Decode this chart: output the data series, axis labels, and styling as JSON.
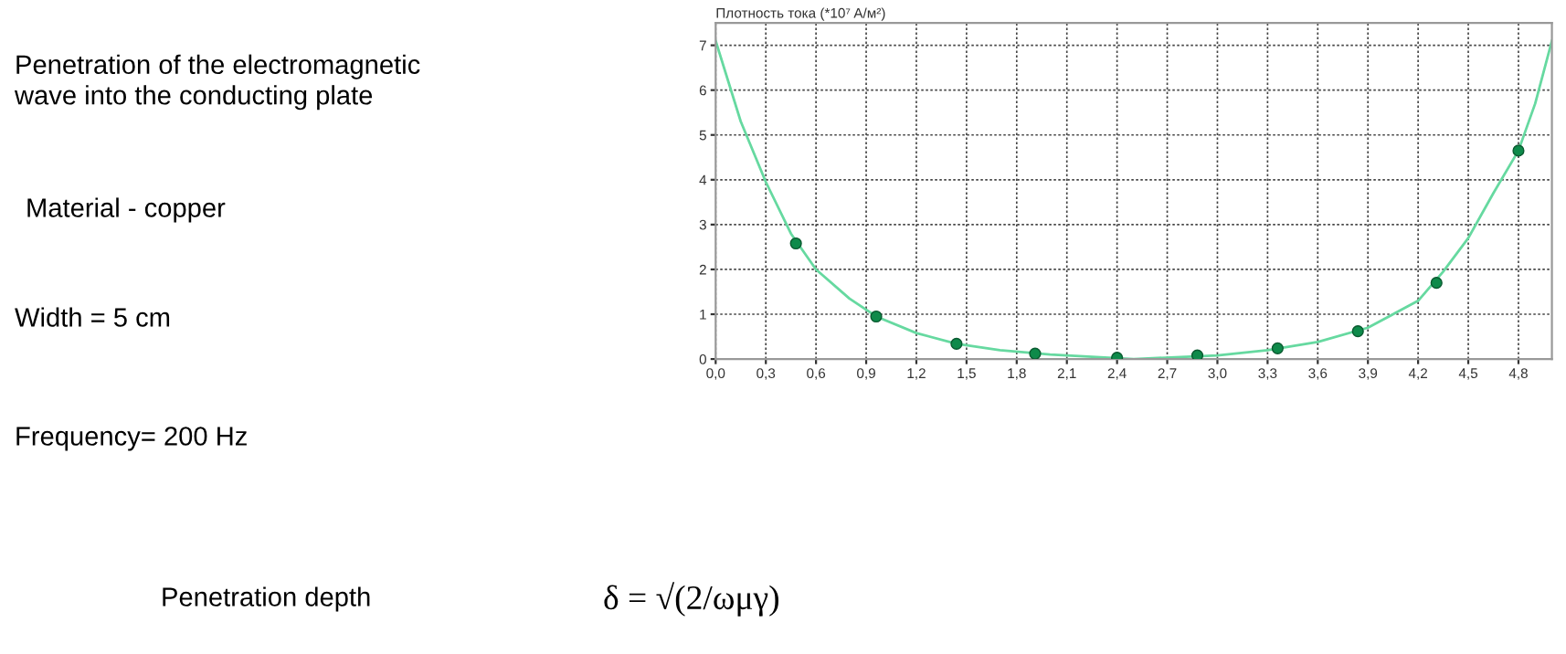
{
  "chart_data": {
    "type": "line",
    "title": "Плотность тока (*10⁷ A/м²)",
    "annotations": [
      "Penetration of the electromagnetic\nwave into the conducting plate",
      "Material - copper",
      "Width = 5 cm",
      "Frequency= 200 Hz",
      "Penetration depth",
      "δ = √(2/ωμγ)"
    ],
    "series": [
      {
        "color": "#66d9a0",
        "marker": "none",
        "x": [
          0,
          0.15,
          0.3,
          0.45,
          0.6,
          0.8,
          0.96,
          1.2,
          1.44,
          1.7,
          2.0,
          2.25,
          2.5,
          2.75,
          3.0,
          3.3,
          3.6,
          3.9,
          4.2,
          4.35,
          4.5,
          4.65,
          4.8,
          4.9,
          5.0
        ],
        "values": [
          7.1,
          5.3,
          3.95,
          2.8,
          2.0,
          1.35,
          0.95,
          0.58,
          0.34,
          0.2,
          0.1,
          0.05,
          0.0,
          0.04,
          0.08,
          0.2,
          0.38,
          0.7,
          1.3,
          1.95,
          2.7,
          3.7,
          4.65,
          5.7,
          7.1
        ]
      },
      {
        "type": "scatter",
        "color": "#0e8a4a",
        "marker": "circle",
        "x": [
          0.48,
          0.96,
          1.44,
          1.91,
          2.4,
          2.88,
          3.36,
          3.84,
          4.31,
          4.8
        ],
        "values": [
          2.58,
          0.95,
          0.34,
          0.12,
          0.03,
          0.08,
          0.24,
          0.62,
          1.7,
          4.65
        ]
      }
    ],
    "xlim": [
      0,
      5
    ],
    "ylim": [
      0,
      7.5
    ],
    "xticks": [
      {
        "value": 0,
        "label": "0,0"
      },
      {
        "value": 0.3,
        "label": "0,3"
      },
      {
        "value": 0.6,
        "label": "0,6"
      },
      {
        "value": 0.9,
        "label": "0,9"
      },
      {
        "value": 1.2,
        "label": "1,2"
      },
      {
        "value": 1.5,
        "label": "1,5"
      },
      {
        "value": 1.8,
        "label": "1,8"
      },
      {
        "value": 2.1,
        "label": "2,1"
      },
      {
        "value": 2.4,
        "label": "2,4"
      },
      {
        "value": 2.7,
        "label": "2,7"
      },
      {
        "value": 3.0,
        "label": "3,0"
      },
      {
        "value": 3.3,
        "label": "3,3"
      },
      {
        "value": 3.6,
        "label": "3,6"
      },
      {
        "value": 3.9,
        "label": "3,9"
      },
      {
        "value": 4.2,
        "label": "4,2"
      },
      {
        "value": 4.5,
        "label": "4,5"
      },
      {
        "value": 4.8,
        "label": "4,8"
      }
    ],
    "yticks": [
      0,
      1,
      2,
      3,
      4,
      5,
      6,
      7
    ],
    "grid": true
  }
}
